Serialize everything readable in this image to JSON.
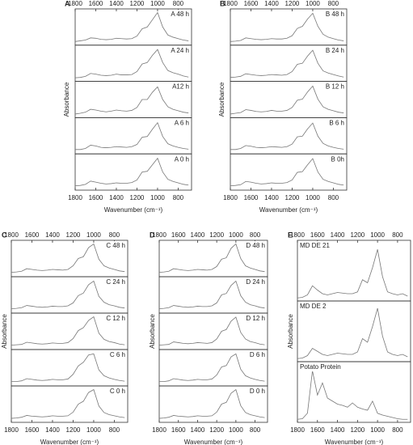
{
  "chart_data": [
    {
      "type": "line",
      "panel": "A",
      "xlabel": "Wavenumber (cm⁻¹)",
      "ylabel": "Absorbance",
      "xlim": [
        1800,
        670
      ],
      "xticks": [
        1800,
        1600,
        1400,
        1200,
        1000,
        800
      ],
      "ylim": [
        0,
        1
      ],
      "legend": "upper right",
      "x": [
        1800,
        1750,
        1700,
        1650,
        1600,
        1550,
        1500,
        1450,
        1400,
        1350,
        1300,
        1250,
        1200,
        1150,
        1100,
        1050,
        1000,
        950,
        900,
        850,
        800,
        750,
        700
      ],
      "series": [
        {
          "name": "A 48 h",
          "color": "#777777",
          "values": [
            0.1,
            0.12,
            0.14,
            0.2,
            0.19,
            0.16,
            0.15,
            0.16,
            0.19,
            0.18,
            0.17,
            0.18,
            0.25,
            0.45,
            0.5,
            0.7,
            0.9,
            0.5,
            0.28,
            0.22,
            0.18,
            0.14,
            0.12
          ]
        },
        {
          "name": "A 24 h",
          "color": "#777777",
          "values": [
            0.1,
            0.11,
            0.14,
            0.22,
            0.2,
            0.17,
            0.16,
            0.17,
            0.2,
            0.18,
            0.18,
            0.19,
            0.27,
            0.48,
            0.52,
            0.72,
            0.88,
            0.52,
            0.3,
            0.24,
            0.2,
            0.15,
            0.12
          ]
        },
        {
          "name": "A12 h",
          "color": "#777777",
          "values": [
            0.1,
            0.12,
            0.15,
            0.23,
            0.21,
            0.18,
            0.16,
            0.18,
            0.21,
            0.19,
            0.18,
            0.2,
            0.28,
            0.5,
            0.5,
            0.7,
            0.85,
            0.5,
            0.3,
            0.23,
            0.19,
            0.15,
            0.13
          ]
        },
        {
          "name": "A 6 h",
          "color": "#777777",
          "values": [
            0.12,
            0.12,
            0.15,
            0.24,
            0.22,
            0.18,
            0.17,
            0.18,
            0.2,
            0.19,
            0.18,
            0.2,
            0.26,
            0.46,
            0.48,
            0.68,
            0.86,
            0.48,
            0.28,
            0.22,
            0.18,
            0.15,
            0.13
          ]
        },
        {
          "name": "A 0 h",
          "color": "#777777",
          "values": [
            0.12,
            0.13,
            0.16,
            0.25,
            0.22,
            0.19,
            0.17,
            0.18,
            0.2,
            0.19,
            0.19,
            0.21,
            0.28,
            0.5,
            0.52,
            0.7,
            0.88,
            0.5,
            0.3,
            0.24,
            0.2,
            0.16,
            0.14
          ]
        }
      ]
    },
    {
      "type": "line",
      "panel": "B",
      "xlabel": "Wavenumber (cm⁻¹)",
      "ylabel": "Absorbance",
      "xlim": [
        1800,
        670
      ],
      "xticks": [
        1800,
        1600,
        1400,
        1200,
        1000,
        800
      ],
      "ylim": [
        0,
        1
      ],
      "legend": "upper right",
      "x": [
        1800,
        1750,
        1700,
        1650,
        1600,
        1550,
        1500,
        1450,
        1400,
        1350,
        1300,
        1250,
        1200,
        1150,
        1100,
        1050,
        1000,
        950,
        900,
        850,
        800,
        750,
        700
      ],
      "series": [
        {
          "name": "B 48 h",
          "color": "#777777",
          "values": [
            0.1,
            0.11,
            0.13,
            0.2,
            0.18,
            0.16,
            0.15,
            0.16,
            0.18,
            0.17,
            0.17,
            0.19,
            0.26,
            0.46,
            0.52,
            0.72,
            0.88,
            0.52,
            0.3,
            0.22,
            0.18,
            0.14,
            0.12
          ]
        },
        {
          "name": "B 24 h",
          "color": "#777777",
          "values": [
            0.11,
            0.12,
            0.14,
            0.21,
            0.19,
            0.17,
            0.16,
            0.17,
            0.19,
            0.18,
            0.17,
            0.19,
            0.27,
            0.47,
            0.5,
            0.7,
            0.86,
            0.5,
            0.29,
            0.23,
            0.19,
            0.15,
            0.12
          ]
        },
        {
          "name": "B 12 h",
          "color": "#777777",
          "values": [
            0.1,
            0.12,
            0.14,
            0.22,
            0.2,
            0.17,
            0.16,
            0.17,
            0.2,
            0.18,
            0.18,
            0.2,
            0.28,
            0.48,
            0.51,
            0.71,
            0.87,
            0.51,
            0.3,
            0.23,
            0.19,
            0.15,
            0.13
          ]
        },
        {
          "name": "B 6 h",
          "color": "#777777",
          "values": [
            0.12,
            0.12,
            0.15,
            0.23,
            0.21,
            0.18,
            0.17,
            0.18,
            0.2,
            0.19,
            0.18,
            0.2,
            0.27,
            0.47,
            0.49,
            0.69,
            0.85,
            0.49,
            0.29,
            0.22,
            0.18,
            0.15,
            0.13
          ]
        },
        {
          "name": "B 0h",
          "color": "#777777",
          "values": [
            0.12,
            0.13,
            0.15,
            0.24,
            0.22,
            0.19,
            0.17,
            0.18,
            0.2,
            0.19,
            0.19,
            0.21,
            0.28,
            0.49,
            0.51,
            0.7,
            0.87,
            0.5,
            0.3,
            0.24,
            0.2,
            0.16,
            0.14
          ]
        }
      ]
    },
    {
      "type": "line",
      "panel": "C",
      "xlabel": "Wavenumber (cm⁻¹)",
      "ylabel": "Absorbance",
      "xlim": [
        1800,
        670
      ],
      "xticks": [
        1800,
        1600,
        1400,
        1200,
        1000,
        800
      ],
      "ylim": [
        0,
        1
      ],
      "legend": "upper right",
      "x": [
        1800,
        1750,
        1700,
        1650,
        1600,
        1550,
        1500,
        1450,
        1400,
        1350,
        1300,
        1250,
        1200,
        1150,
        1100,
        1050,
        1000,
        950,
        900,
        850,
        800,
        750,
        700
      ],
      "series": [
        {
          "name": "C 48 h",
          "color": "#777777",
          "values": [
            0.12,
            0.13,
            0.15,
            0.22,
            0.2,
            0.18,
            0.17,
            0.18,
            0.2,
            0.19,
            0.18,
            0.2,
            0.3,
            0.5,
            0.55,
            0.8,
            0.9,
            0.48,
            0.3,
            0.24,
            0.2,
            0.16,
            0.14
          ]
        },
        {
          "name": "C 24 h",
          "color": "#777777",
          "values": [
            0.12,
            0.13,
            0.15,
            0.21,
            0.19,
            0.17,
            0.16,
            0.17,
            0.19,
            0.18,
            0.18,
            0.2,
            0.28,
            0.48,
            0.55,
            0.78,
            0.88,
            0.46,
            0.3,
            0.23,
            0.2,
            0.16,
            0.14
          ]
        },
        {
          "name": "C 12 h",
          "color": "#777777",
          "values": [
            0.12,
            0.13,
            0.14,
            0.2,
            0.18,
            0.16,
            0.15,
            0.16,
            0.18,
            0.17,
            0.17,
            0.19,
            0.3,
            0.52,
            0.6,
            0.8,
            0.9,
            0.45,
            0.28,
            0.22,
            0.19,
            0.15,
            0.13
          ]
        },
        {
          "name": "C 6 h",
          "color": "#777777",
          "values": [
            0.12,
            0.12,
            0.14,
            0.2,
            0.18,
            0.16,
            0.15,
            0.16,
            0.18,
            0.17,
            0.17,
            0.19,
            0.32,
            0.55,
            0.65,
            0.85,
            0.88,
            0.44,
            0.28,
            0.22,
            0.18,
            0.15,
            0.13
          ]
        },
        {
          "name": "C 0 h",
          "color": "#777777",
          "values": [
            0.11,
            0.12,
            0.14,
            0.19,
            0.17,
            0.16,
            0.15,
            0.16,
            0.18,
            0.17,
            0.17,
            0.18,
            0.28,
            0.5,
            0.58,
            0.82,
            0.9,
            0.45,
            0.27,
            0.21,
            0.18,
            0.15,
            0.13
          ]
        }
      ]
    },
    {
      "type": "line",
      "panel": "D",
      "xlabel": "Wavenumber (cm⁻¹)",
      "ylabel": "Absorbance",
      "xlim": [
        1800,
        670
      ],
      "xticks": [
        1800,
        1600,
        1400,
        1200,
        1000,
        800
      ],
      "ylim": [
        0,
        1
      ],
      "legend": "upper right",
      "x": [
        1800,
        1750,
        1700,
        1650,
        1600,
        1550,
        1500,
        1450,
        1400,
        1350,
        1300,
        1250,
        1200,
        1150,
        1100,
        1050,
        1000,
        950,
        900,
        850,
        800,
        750,
        700
      ],
      "series": [
        {
          "name": "D 48 h",
          "color": "#777777",
          "values": [
            0.12,
            0.13,
            0.15,
            0.22,
            0.2,
            0.18,
            0.17,
            0.18,
            0.2,
            0.19,
            0.18,
            0.2,
            0.28,
            0.48,
            0.52,
            0.78,
            0.9,
            0.5,
            0.3,
            0.24,
            0.2,
            0.16,
            0.14
          ]
        },
        {
          "name": "D 24 h",
          "color": "#777777",
          "values": [
            0.12,
            0.13,
            0.15,
            0.21,
            0.19,
            0.17,
            0.16,
            0.17,
            0.19,
            0.18,
            0.18,
            0.2,
            0.28,
            0.5,
            0.54,
            0.76,
            0.88,
            0.48,
            0.3,
            0.23,
            0.2,
            0.16,
            0.14
          ]
        },
        {
          "name": "D 12 h",
          "color": "#777777",
          "values": [
            0.12,
            0.13,
            0.14,
            0.21,
            0.19,
            0.17,
            0.16,
            0.17,
            0.19,
            0.18,
            0.17,
            0.19,
            0.29,
            0.5,
            0.55,
            0.78,
            0.89,
            0.47,
            0.29,
            0.22,
            0.19,
            0.15,
            0.13
          ]
        },
        {
          "name": "D 6 h",
          "color": "#777777",
          "values": [
            0.12,
            0.12,
            0.14,
            0.2,
            0.18,
            0.16,
            0.15,
            0.16,
            0.18,
            0.17,
            0.17,
            0.19,
            0.3,
            0.52,
            0.56,
            0.8,
            0.88,
            0.46,
            0.28,
            0.22,
            0.18,
            0.15,
            0.13
          ]
        },
        {
          "name": "D 0 h",
          "color": "#777777",
          "values": [
            0.11,
            0.12,
            0.14,
            0.19,
            0.17,
            0.16,
            0.15,
            0.16,
            0.18,
            0.17,
            0.17,
            0.18,
            0.28,
            0.5,
            0.55,
            0.8,
            0.9,
            0.46,
            0.27,
            0.21,
            0.18,
            0.15,
            0.13
          ]
        }
      ]
    },
    {
      "type": "line",
      "panel": "E",
      "xlabel": "Wavenumber (cm⁻¹)",
      "ylabel": "Absorbance",
      "xlim": [
        1800,
        670
      ],
      "xticks": [
        1800,
        1600,
        1400,
        1200,
        1000,
        800
      ],
      "ylim": [
        0,
        1
      ],
      "legend": "upper left",
      "x": [
        1800,
        1750,
        1700,
        1650,
        1600,
        1550,
        1500,
        1450,
        1400,
        1350,
        1300,
        1250,
        1200,
        1150,
        1100,
        1050,
        1000,
        950,
        900,
        850,
        800,
        750,
        700
      ],
      "series": [
        {
          "name": "MD DE 21",
          "color": "#777777",
          "values": [
            0.05,
            0.06,
            0.1,
            0.25,
            0.18,
            0.12,
            0.1,
            0.12,
            0.14,
            0.13,
            0.12,
            0.12,
            0.15,
            0.35,
            0.3,
            0.55,
            0.85,
            0.4,
            0.15,
            0.12,
            0.1,
            0.12,
            0.08
          ]
        },
        {
          "name": "MD DE 2",
          "color": "#777777",
          "values": [
            0.05,
            0.06,
            0.1,
            0.22,
            0.17,
            0.12,
            0.1,
            0.12,
            0.14,
            0.13,
            0.12,
            0.12,
            0.16,
            0.38,
            0.32,
            0.58,
            0.88,
            0.42,
            0.16,
            0.12,
            0.1,
            0.12,
            0.08
          ]
        },
        {
          "name": "Potato Protein",
          "color": "#777777",
          "values": [
            0.05,
            0.06,
            0.15,
            0.85,
            0.45,
            0.65,
            0.4,
            0.35,
            0.3,
            0.28,
            0.25,
            0.32,
            0.25,
            0.22,
            0.2,
            0.35,
            0.15,
            0.12,
            0.1,
            0.08,
            0.06,
            0.05,
            0.05
          ]
        }
      ]
    }
  ]
}
